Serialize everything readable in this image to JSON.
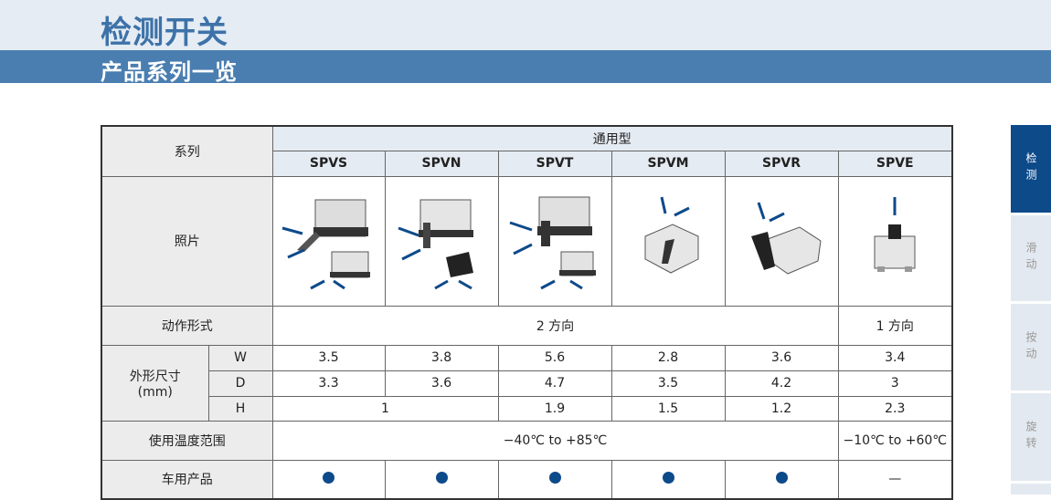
{
  "header": {
    "title": "检测开关",
    "subtitle": "产品系列一览"
  },
  "side_tabs": [
    {
      "label": "检测",
      "active": true
    },
    {
      "label": "滑动",
      "active": false
    },
    {
      "label": "按动",
      "active": false
    },
    {
      "label": "旋转",
      "active": false
    }
  ],
  "table": {
    "series_label": "系列",
    "group_label": "通用型",
    "models": [
      "SPVS",
      "SPVN",
      "SPVT",
      "SPVM",
      "SPVR",
      "SPVE"
    ],
    "photo_label": "照片",
    "action_label": "动作形式",
    "action_two": "2 方向",
    "action_one": "1 方向",
    "dims_label": "外形尺寸",
    "dims_unit": "(mm)",
    "W": {
      "label": "W",
      "values": [
        "3.5",
        "3.8",
        "5.6",
        "2.8",
        "3.6",
        "3.4"
      ]
    },
    "D": {
      "label": "D",
      "values": [
        "3.3",
        "3.6",
        "4.7",
        "3.5",
        "4.2",
        "3"
      ]
    },
    "H": {
      "label": "H",
      "values": [
        "1",
        "1.9",
        "1.5",
        "1.2",
        "2.3"
      ]
    },
    "temp_label": "使用温度范围",
    "temp_a": "−40℃ to +85℃",
    "temp_b": "−10℃ to +60℃",
    "auto_label": "车用产品",
    "auto_dash": "—",
    "accent": "#0d4a8a"
  }
}
